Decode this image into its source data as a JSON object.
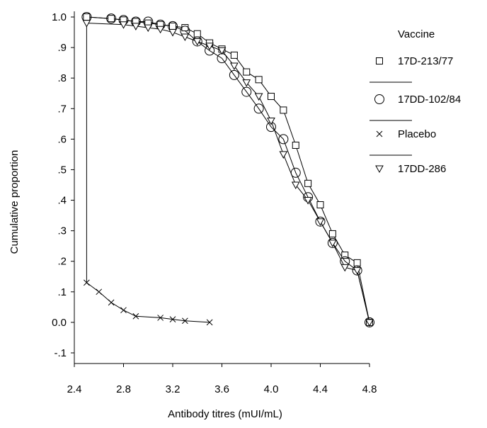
{
  "chart_data": {
    "type": "line",
    "title": "",
    "xlabel": "Antibody titres (mUI/mL)",
    "ylabel": "Cumulative proportion",
    "xlim": [
      2.4,
      4.8
    ],
    "ylim": [
      -0.1,
      1.0
    ],
    "xticks": [
      2.4,
      2.8,
      3.2,
      3.6,
      4.0,
      4.4,
      4.8
    ],
    "xtick_labels": [
      "2.4",
      "2.8",
      "3.2",
      "3.6",
      "4.0",
      "4.4",
      "4.8"
    ],
    "yticks": [
      1.0,
      0.9,
      0.8,
      0.7,
      0.6,
      0.5,
      0.4,
      0.3,
      0.2,
      0.1,
      0.0,
      -0.1
    ],
    "ytick_labels": [
      "1.0",
      ".9",
      ".8",
      ".7",
      ".6",
      ".5",
      ".4",
      ".3",
      ".2",
      ".1",
      "0.0",
      "-.1"
    ],
    "grid": false,
    "legend_title": "Vaccine",
    "legend_position": "right",
    "series": [
      {
        "name": "17D-213/77",
        "marker": "square",
        "x": [
          2.5,
          2.7,
          2.8,
          2.9,
          3.0,
          3.1,
          3.2,
          3.3,
          3.4,
          3.5,
          3.6,
          3.7,
          3.8,
          3.9,
          4.0,
          4.1,
          4.2,
          4.3,
          4.4,
          4.5,
          4.6,
          4.7,
          4.8
        ],
        "values": [
          1.0,
          0.995,
          0.99,
          0.985,
          0.98,
          0.975,
          0.97,
          0.965,
          0.945,
          0.915,
          0.895,
          0.875,
          0.82,
          0.795,
          0.74,
          0.695,
          0.58,
          0.455,
          0.385,
          0.29,
          0.22,
          0.195,
          0.0
        ]
      },
      {
        "name": "17DD-102/84",
        "marker": "circle",
        "x": [
          2.5,
          2.7,
          2.8,
          2.9,
          3.0,
          3.1,
          3.2,
          3.3,
          3.4,
          3.5,
          3.6,
          3.7,
          3.8,
          3.9,
          4.0,
          4.1,
          4.2,
          4.3,
          4.4,
          4.5,
          4.6,
          4.7,
          4.8
        ],
        "values": [
          1.0,
          0.995,
          0.99,
          0.985,
          0.985,
          0.975,
          0.97,
          0.955,
          0.92,
          0.89,
          0.865,
          0.81,
          0.755,
          0.7,
          0.64,
          0.6,
          0.49,
          0.41,
          0.33,
          0.26,
          0.2,
          0.17,
          0.0
        ]
      },
      {
        "name": "Placebo",
        "marker": "x",
        "x": [
          2.5,
          2.5,
          2.6,
          2.7,
          2.8,
          2.9,
          3.1,
          3.2,
          3.3,
          3.5
        ],
        "values": [
          1.0,
          0.13,
          0.1,
          0.065,
          0.04,
          0.02,
          0.015,
          0.01,
          0.005,
          0.0
        ]
      },
      {
        "name": "17DD-286",
        "marker": "triangle-down",
        "x": [
          2.5,
          2.8,
          2.9,
          3.0,
          3.1,
          3.2,
          3.3,
          3.4,
          3.5,
          3.6,
          3.7,
          3.8,
          3.9,
          4.0,
          4.1,
          4.2,
          4.3,
          4.4,
          4.5,
          4.6,
          4.7,
          4.8
        ],
        "values": [
          0.98,
          0.975,
          0.97,
          0.965,
          0.96,
          0.95,
          0.935,
          0.92,
          0.905,
          0.89,
          0.84,
          0.785,
          0.74,
          0.66,
          0.55,
          0.45,
          0.4,
          0.33,
          0.26,
          0.18,
          0.17,
          0.0
        ]
      }
    ]
  }
}
